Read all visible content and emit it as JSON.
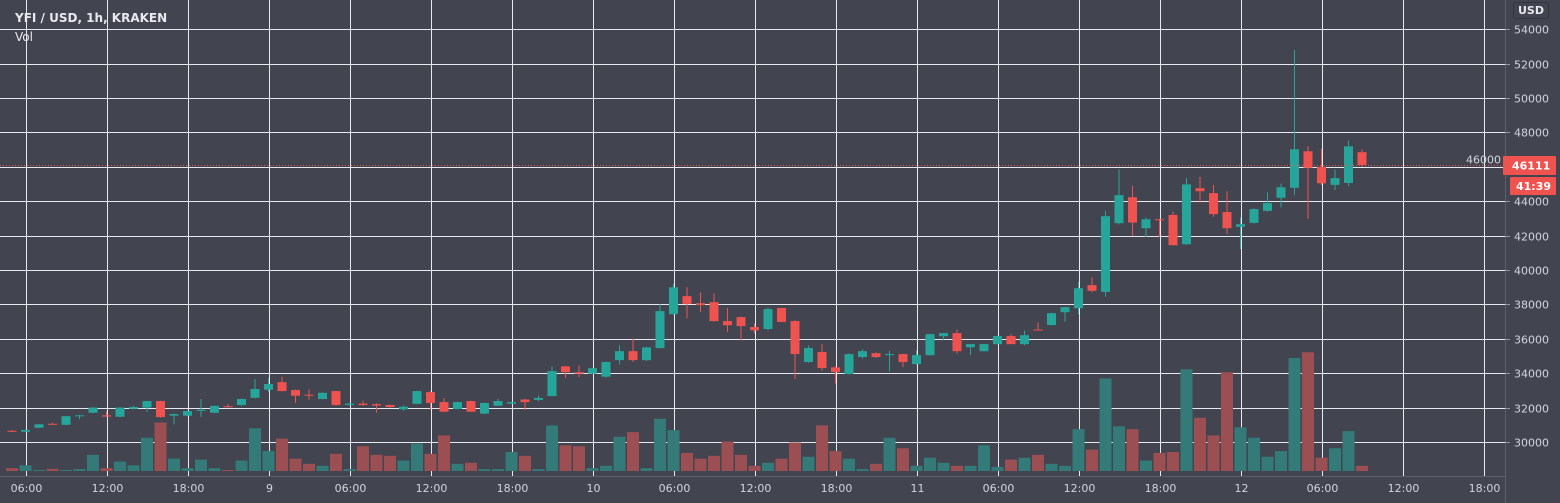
{
  "header": {
    "title": "YFI / USD, 1h, KRAKEN",
    "volume_label": "Vol"
  },
  "price_axis": {
    "currency_button": "USD"
  },
  "last_price": {
    "value": "46111",
    "countdown": "41:39"
  },
  "colors": {
    "up": "#26a69a",
    "down": "#ef5350",
    "up_volume": "#337a78",
    "down_volume": "#9b4f53",
    "background": "#42454f",
    "grid": "#e6e9ef"
  },
  "chart_data": {
    "type": "candlestick",
    "symbol": "YFI / USD",
    "interval": "1h",
    "exchange": "KRAKEN",
    "grid": true,
    "ylim": [
      28500,
      54500
    ],
    "y_ticks": [
      "30000",
      "32000",
      "34000",
      "36000",
      "38000",
      "40000",
      "42000",
      "44000",
      "46000",
      "48000",
      "50000",
      "52000",
      "54000"
    ],
    "x_ticks": [
      "06:00",
      "12:00",
      "18:00",
      "9",
      "06:00",
      "12:00",
      "18:00",
      "10",
      "06:00",
      "12:00",
      "18:00",
      "11",
      "06:00",
      "12:00",
      "18:00",
      "12",
      "06:00",
      "12:00",
      "18:00"
    ],
    "ohlc": [
      [
        30650,
        30700,
        30580,
        30600
      ],
      [
        30600,
        30720,
        30580,
        30700
      ],
      [
        30830,
        31050,
        30800,
        31030
      ],
      [
        31060,
        31120,
        31000,
        31020
      ],
      [
        31000,
        31520,
        30980,
        31500
      ],
      [
        31500,
        31580,
        31320,
        31550
      ],
      [
        31700,
        32020,
        31670,
        32000
      ],
      [
        31550,
        31800,
        31450,
        31480
      ],
      [
        31470,
        32020,
        31450,
        32000
      ],
      [
        31930,
        32100,
        31900,
        32030
      ],
      [
        32000,
        32400,
        31750,
        32380
      ],
      [
        32380,
        32400,
        31400,
        31450
      ],
      [
        31530,
        31650,
        31030,
        31620
      ],
      [
        31530,
        31820,
        31500,
        31800
      ],
      [
        31850,
        32500,
        31470,
        31870
      ],
      [
        31700,
        32120,
        31680,
        32100
      ],
      [
        32080,
        32200,
        32000,
        32030
      ],
      [
        32150,
        32520,
        32100,
        32500
      ],
      [
        32570,
        33660,
        32530,
        33080
      ],
      [
        33040,
        33740,
        32900,
        33370
      ],
      [
        33480,
        33790,
        32950,
        32960
      ],
      [
        33020,
        33050,
        32270,
        32690
      ],
      [
        32750,
        33050,
        32450,
        32700
      ],
      [
        32500,
        32880,
        32480,
        32860
      ],
      [
        32960,
        32980,
        32130,
        32150
      ],
      [
        32150,
        32250,
        32120,
        32230
      ],
      [
        32230,
        32400,
        32100,
        32150
      ],
      [
        32200,
        32250,
        31700,
        32120
      ],
      [
        32150,
        32170,
        31990,
        32030
      ],
      [
        31900,
        32120,
        31800,
        32050
      ],
      [
        32220,
        32980,
        32200,
        32960
      ],
      [
        32900,
        32950,
        31870,
        32270
      ],
      [
        32320,
        32560,
        31740,
        31760
      ],
      [
        31920,
        32340,
        31900,
        32320
      ],
      [
        32380,
        32400,
        31740,
        31760
      ],
      [
        31650,
        32290,
        31630,
        32270
      ],
      [
        32110,
        32500,
        32090,
        32380
      ],
      [
        32230,
        32340,
        32200,
        32320
      ],
      [
        32470,
        32500,
        31860,
        32320
      ],
      [
        32450,
        32700,
        32380,
        32560
      ],
      [
        32670,
        34400,
        32650,
        34120
      ],
      [
        34400,
        34420,
        33720,
        34060
      ],
      [
        34060,
        34460,
        33780,
        33970
      ],
      [
        33970,
        34300,
        33950,
        34290
      ],
      [
        33800,
        34670,
        33740,
        34650
      ],
      [
        34760,
        35620,
        34500,
        35280
      ],
      [
        35280,
        36020,
        34650,
        34760
      ],
      [
        34760,
        35520,
        34700,
        35500
      ],
      [
        35460,
        38000,
        35440,
        37610
      ],
      [
        37430,
        39200,
        37400,
        38990
      ],
      [
        38480,
        39000,
        37190,
        38030
      ],
      [
        38070,
        38700,
        37560,
        37960
      ],
      [
        38130,
        38650,
        37000,
        37030
      ],
      [
        37030,
        37800,
        36400,
        36790
      ],
      [
        37260,
        37300,
        35900,
        36740
      ],
      [
        36680,
        36900,
        36300,
        36500
      ],
      [
        36570,
        37830,
        36500,
        37730
      ],
      [
        37790,
        37810,
        36960,
        36980
      ],
      [
        37030,
        37080,
        33660,
        35110
      ],
      [
        34650,
        35600,
        34600,
        35460
      ],
      [
        35230,
        35690,
        34150,
        34300
      ],
      [
        34340,
        34400,
        33400,
        34070
      ],
      [
        33950,
        35150,
        33920,
        35110
      ],
      [
        34940,
        35400,
        34850,
        35280
      ],
      [
        35160,
        35200,
        34900,
        34940
      ],
      [
        35050,
        35300,
        34100,
        35110
      ],
      [
        35110,
        35130,
        34350,
        34650
      ],
      [
        34530,
        35330,
        34500,
        35050
      ],
      [
        35050,
        36300,
        35030,
        36270
      ],
      [
        36150,
        36350,
        35900,
        36330
      ],
      [
        36330,
        36530,
        35150,
        35280
      ],
      [
        35510,
        35700,
        35050,
        35690
      ],
      [
        35280,
        35700,
        35260,
        35690
      ],
      [
        35690,
        36180,
        35670,
        36160
      ],
      [
        36160,
        36270,
        35690,
        35690
      ],
      [
        35690,
        36480,
        35620,
        36210
      ],
      [
        36540,
        36960,
        36480,
        36500
      ],
      [
        36800,
        37520,
        36780,
        37490
      ],
      [
        37550,
        37860,
        37000,
        37840
      ],
      [
        37780,
        39300,
        37420,
        38940
      ],
      [
        39120,
        39560,
        38700,
        38790
      ],
      [
        38730,
        43420,
        38450,
        43130
      ],
      [
        42720,
        45850,
        42650,
        44350
      ],
      [
        44230,
        44900,
        42000,
        42760
      ],
      [
        42430,
        43050,
        41920,
        42950
      ],
      [
        42950,
        42980,
        41900,
        42900
      ],
      [
        43200,
        43400,
        41440,
        41440
      ],
      [
        41500,
        45350,
        41450,
        44980
      ],
      [
        44760,
        45420,
        43900,
        44580
      ],
      [
        44470,
        44950,
        43100,
        43250
      ],
      [
        43370,
        44580,
        42100,
        42430
      ],
      [
        42510,
        43050,
        41210,
        42660
      ],
      [
        42740,
        43600,
        42700,
        43540
      ],
      [
        43440,
        44520,
        43400,
        43890
      ],
      [
        44200,
        45020,
        43650,
        44810
      ],
      [
        44780,
        52780,
        44350,
        47020
      ],
      [
        46900,
        47200,
        42970,
        45940
      ],
      [
        46000,
        47050,
        44950,
        45040
      ],
      [
        44950,
        45840,
        44650,
        45340
      ],
      [
        45060,
        47530,
        44880,
        47190
      ],
      [
        46850,
        47020,
        46000,
        46110
      ]
    ],
    "volume": [
      3,
      6,
      1,
      2.3,
      1,
      2,
      17,
      3,
      10,
      6,
      35,
      51,
      13,
      3,
      12,
      3,
      1,
      11,
      45,
      21,
      34,
      13,
      7.5,
      5.4,
      18,
      2,
      26,
      17,
      16,
      11,
      29,
      18,
      37.5,
      7.5,
      8.6,
      2,
      2,
      20,
      16,
      2,
      48,
      27,
      26,
      3,
      5.4,
      36,
      41,
      3,
      55,
      43,
      19,
      13,
      16,
      31,
      17,
      5.4,
      8.6,
      13,
      30,
      15,
      48,
      21,
      13,
      2,
      7.5,
      35,
      24,
      5.4,
      14,
      8.6,
      5.4,
      5.4,
      27,
      4.3,
      12,
      14,
      17,
      7.5,
      5.4,
      44,
      22.5,
      97.5,
      47,
      44,
      11,
      19,
      20,
      107,
      56,
      37.5,
      104,
      46,
      35,
      15,
      21,
      119,
      125,
      14,
      24,
      42,
      5.4
    ]
  }
}
